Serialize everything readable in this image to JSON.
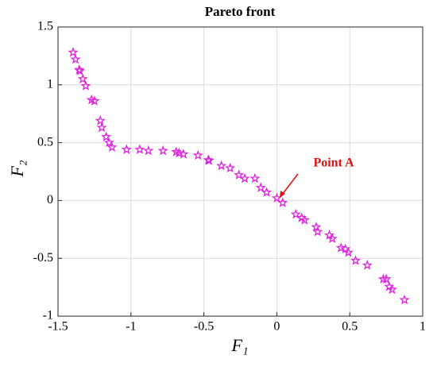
{
  "chart_data": {
    "type": "scatter",
    "title": "Pareto front",
    "xlabel": "F₁",
    "ylabel": "F₂",
    "xlim": [
      -1.5,
      1
    ],
    "ylim": [
      -1,
      1.5
    ],
    "xticks": [
      -1.5,
      -1,
      -0.5,
      0,
      0.5,
      1
    ],
    "yticks": [
      -1,
      -0.5,
      0,
      0.5,
      1,
      1.5
    ],
    "grid": true,
    "color": "#e020e0",
    "marker": "star",
    "x": [
      -1.397,
      -1.38,
      -1.355,
      -1.35,
      -1.33,
      -1.31,
      -1.27,
      -1.25,
      -1.21,
      -1.2,
      -1.17,
      -1.15,
      -1.13,
      -1.03,
      -0.94,
      -0.88,
      -0.78,
      -0.69,
      -0.67,
      -0.64,
      -0.54,
      -0.47,
      -0.465,
      -0.38,
      -0.32,
      -0.26,
      -0.22,
      -0.15,
      -0.11,
      -0.07,
      0.0,
      0.04,
      0.13,
      0.17,
      0.19,
      0.27,
      0.28,
      0.36,
      0.38,
      0.44,
      0.47,
      0.49,
      0.54,
      0.62,
      0.73,
      0.75,
      0.77,
      0.79,
      0.875
    ],
    "y": [
      1.28,
      1.22,
      1.13,
      1.12,
      1.05,
      0.99,
      0.87,
      0.86,
      0.69,
      0.63,
      0.55,
      0.5,
      0.46,
      0.44,
      0.44,
      0.43,
      0.43,
      0.42,
      0.41,
      0.4,
      0.39,
      0.35,
      0.345,
      0.3,
      0.28,
      0.22,
      0.19,
      0.19,
      0.11,
      0.07,
      0.02,
      -0.02,
      -0.12,
      -0.15,
      -0.17,
      -0.23,
      -0.27,
      -0.3,
      -0.33,
      -0.41,
      -0.42,
      -0.45,
      -0.52,
      -0.56,
      -0.68,
      -0.68,
      -0.745,
      -0.77,
      -0.86
    ],
    "annotation": "Point A"
  }
}
